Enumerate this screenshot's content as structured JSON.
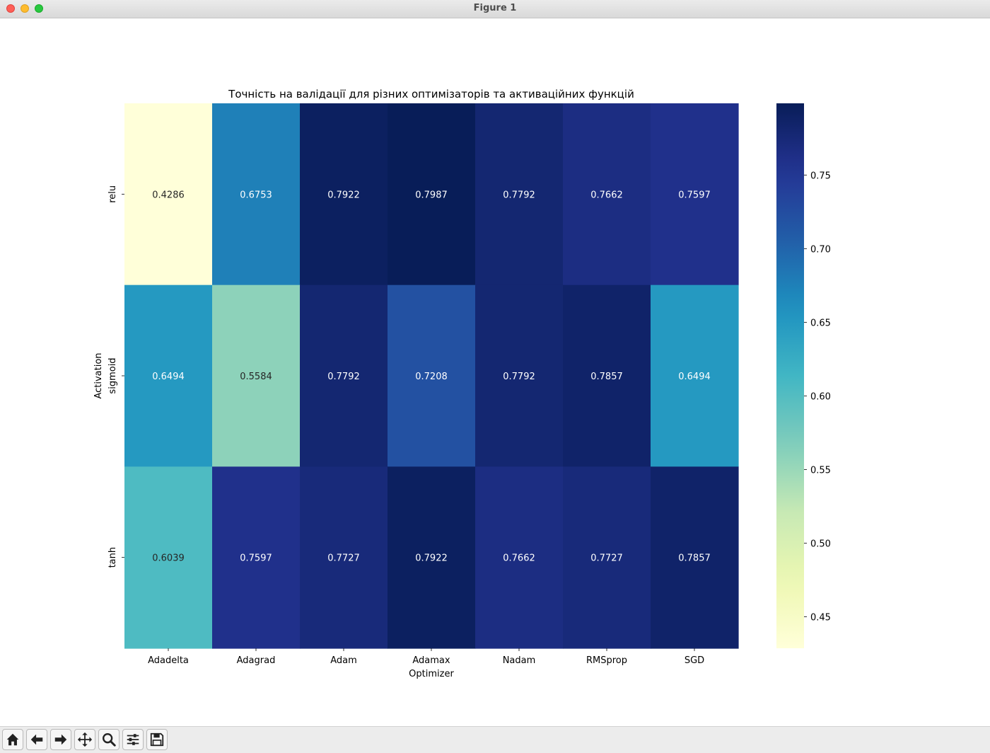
{
  "window": {
    "title": "Figure 1"
  },
  "toolbar": {
    "buttons": [
      {
        "name": "home-button",
        "icon": "home-icon"
      },
      {
        "name": "back-button",
        "icon": "arrow-left-icon"
      },
      {
        "name": "forward-button",
        "icon": "arrow-right-icon"
      },
      {
        "name": "pan-button",
        "icon": "move-icon"
      },
      {
        "name": "zoom-button",
        "icon": "magnifier-icon"
      },
      {
        "name": "configure-subplots-button",
        "icon": "sliders-icon"
      },
      {
        "name": "save-button",
        "icon": "floppy-disk-icon"
      }
    ]
  },
  "chart_data": {
    "type": "heatmap",
    "title": "Точність на валідації для різних оптимізаторів та активаційних функцій",
    "xlabel": "Optimizer",
    "ylabel": "Activation",
    "x_categories": [
      "Adadelta",
      "Adagrad",
      "Adam",
      "Adamax",
      "Nadam",
      "RMSprop",
      "SGD"
    ],
    "y_categories": [
      "relu",
      "sigmoid",
      "tanh"
    ],
    "values": [
      [
        0.4286,
        0.6753,
        0.7922,
        0.7987,
        0.7792,
        0.7662,
        0.7597
      ],
      [
        0.6494,
        0.5584,
        0.7792,
        0.7208,
        0.7792,
        0.7857,
        0.6494
      ],
      [
        0.6039,
        0.7597,
        0.7727,
        0.7922,
        0.7662,
        0.7727,
        0.7857
      ]
    ],
    "colormap": "YlGnBu",
    "colorbar": {
      "range": [
        0.4286,
        0.7987
      ],
      "ticks": [
        0.45,
        0.5,
        0.55,
        0.6,
        0.65,
        0.7,
        0.75
      ],
      "tick_labels": [
        "0.45",
        "0.50",
        "0.55",
        "0.60",
        "0.65",
        "0.70",
        "0.75"
      ]
    },
    "annotations": true,
    "grid": false
  }
}
